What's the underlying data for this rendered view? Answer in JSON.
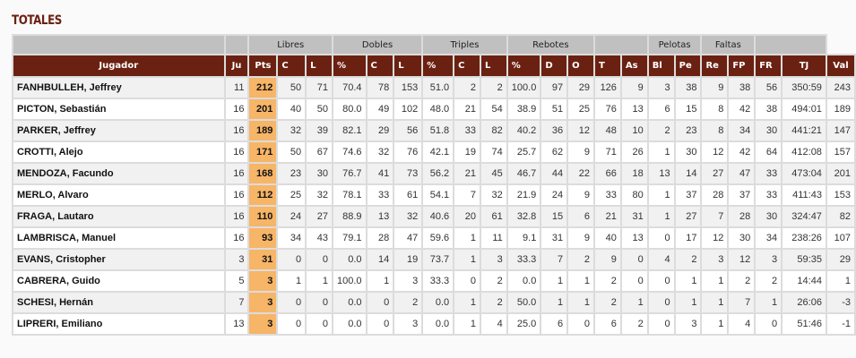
{
  "title": "TOTALES",
  "groups": [
    "",
    "",
    "Libres",
    "Dobles",
    "Triples",
    "Rebotes",
    "",
    "Pelotas",
    "Faltas",
    ""
  ],
  "headers": [
    "Jugador",
    "Ju",
    "Pts",
    "C",
    "L",
    "%",
    "C",
    "L",
    "%",
    "C",
    "L",
    "%",
    "D",
    "O",
    "T",
    "As",
    "Bl",
    "Pe",
    "Re",
    "FP",
    "FR",
    "TJ",
    "Val"
  ],
  "colors": {
    "header_bg": "#6b2111",
    "points_bg": "#f7b567",
    "group_bg": "#c0c0c0"
  },
  "rows": [
    [
      "FANHBULLEH, Jeffrey",
      "11",
      "212",
      "50",
      "71",
      "70.4",
      "78",
      "153",
      "51.0",
      "2",
      "2",
      "100.0",
      "97",
      "29",
      "126",
      "9",
      "3",
      "38",
      "9",
      "38",
      "56",
      "350:59",
      "243"
    ],
    [
      "PICTON, Sebastián",
      "16",
      "201",
      "40",
      "50",
      "80.0",
      "49",
      "102",
      "48.0",
      "21",
      "54",
      "38.9",
      "51",
      "25",
      "76",
      "13",
      "6",
      "15",
      "8",
      "42",
      "38",
      "494:01",
      "189"
    ],
    [
      "PARKER, Jeffrey",
      "16",
      "189",
      "32",
      "39",
      "82.1",
      "29",
      "56",
      "51.8",
      "33",
      "82",
      "40.2",
      "36",
      "12",
      "48",
      "10",
      "2",
      "23",
      "8",
      "34",
      "30",
      "441:21",
      "147"
    ],
    [
      "CROTTI, Alejo",
      "16",
      "171",
      "50",
      "67",
      "74.6",
      "32",
      "76",
      "42.1",
      "19",
      "74",
      "25.7",
      "62",
      "9",
      "71",
      "26",
      "1",
      "30",
      "12",
      "42",
      "64",
      "412:08",
      "157"
    ],
    [
      "MENDOZA, Facundo",
      "16",
      "168",
      "23",
      "30",
      "76.7",
      "41",
      "73",
      "56.2",
      "21",
      "45",
      "46.7",
      "44",
      "22",
      "66",
      "18",
      "13",
      "14",
      "27",
      "47",
      "33",
      "473:04",
      "201"
    ],
    [
      "MERLO, Alvaro",
      "16",
      "112",
      "25",
      "32",
      "78.1",
      "33",
      "61",
      "54.1",
      "7",
      "32",
      "21.9",
      "24",
      "9",
      "33",
      "80",
      "1",
      "37",
      "28",
      "37",
      "33",
      "411:43",
      "153"
    ],
    [
      "FRAGA, Lautaro",
      "16",
      "110",
      "24",
      "27",
      "88.9",
      "13",
      "32",
      "40.6",
      "20",
      "61",
      "32.8",
      "15",
      "6",
      "21",
      "31",
      "1",
      "27",
      "7",
      "28",
      "30",
      "324:47",
      "82"
    ],
    [
      "LAMBRISCA, Manuel",
      "16",
      "93",
      "34",
      "43",
      "79.1",
      "28",
      "47",
      "59.6",
      "1",
      "11",
      "9.1",
      "31",
      "9",
      "40",
      "13",
      "0",
      "17",
      "12",
      "30",
      "34",
      "238:26",
      "107"
    ],
    [
      "EVANS, Cristopher",
      "3",
      "31",
      "0",
      "0",
      "0.0",
      "14",
      "19",
      "73.7",
      "1",
      "3",
      "33.3",
      "7",
      "2",
      "9",
      "0",
      "4",
      "2",
      "3",
      "12",
      "3",
      "59:35",
      "29"
    ],
    [
      "CABRERA, Guido",
      "5",
      "3",
      "1",
      "1",
      "100.0",
      "1",
      "3",
      "33.3",
      "0",
      "2",
      "0.0",
      "1",
      "1",
      "2",
      "0",
      "0",
      "1",
      "1",
      "2",
      "2",
      "14:44",
      "1"
    ],
    [
      "SCHESI, Hernán",
      "7",
      "3",
      "0",
      "0",
      "0.0",
      "0",
      "2",
      "0.0",
      "1",
      "2",
      "50.0",
      "1",
      "1",
      "2",
      "1",
      "0",
      "1",
      "1",
      "7",
      "1",
      "26:06",
      "-3"
    ],
    [
      "LIPRERI, Emiliano",
      "13",
      "3",
      "0",
      "0",
      "0.0",
      "0",
      "3",
      "0.0",
      "1",
      "4",
      "25.0",
      "6",
      "0",
      "6",
      "2",
      "0",
      "3",
      "1",
      "4",
      "0",
      "51:46",
      "-1"
    ]
  ]
}
